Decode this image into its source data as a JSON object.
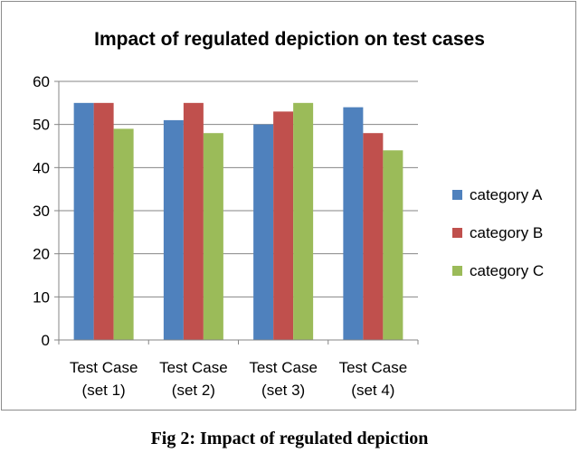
{
  "chart_data": {
    "type": "bar",
    "title": "Impact of regulated depiction on test cases",
    "xlabel": "",
    "ylabel": "",
    "ylim": [
      0,
      60
    ],
    "yticks": [
      0,
      10,
      20,
      30,
      40,
      50,
      60
    ],
    "categories": [
      [
        "Test Case",
        "(set 1)"
      ],
      [
        "Test Case",
        "(set 2)"
      ],
      [
        "Test Case",
        "(set 3)"
      ],
      [
        "Test Case",
        "(set 4)"
      ]
    ],
    "series": [
      {
        "name": "category A",
        "color": "#4f81bd",
        "values": [
          55,
          51,
          50,
          54
        ]
      },
      {
        "name": "category B",
        "color": "#c0504d",
        "values": [
          55,
          55,
          53,
          48
        ]
      },
      {
        "name": "category C",
        "color": "#9bbb59",
        "values": [
          49,
          48,
          55,
          44
        ]
      }
    ],
    "grid": true,
    "legend": "right"
  },
  "caption": "Fig 2: Impact of regulated depiction"
}
